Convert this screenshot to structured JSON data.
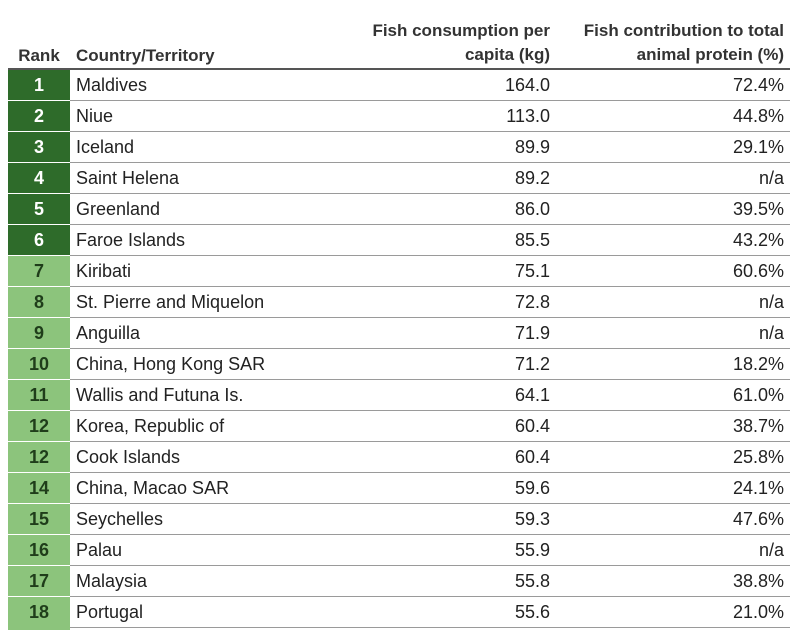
{
  "table": {
    "headers": {
      "rank": "Rank",
      "country": "Country/Territory",
      "fish_line1": "Fish consumption per",
      "fish_line2": "capita (kg)",
      "prot_line1": "Fish contribution to total",
      "prot_line2": "animal protein (%)"
    },
    "colors": {
      "top_rank": "#2e6b2a",
      "other_rank": "#8cc47c"
    },
    "rows": [
      {
        "rank": "1",
        "country": "Maldives",
        "fish": "164.0",
        "protein": "72.4%",
        "tier": "dark"
      },
      {
        "rank": "2",
        "country": "Niue",
        "fish": "113.0",
        "protein": "44.8%",
        "tier": "dark"
      },
      {
        "rank": "3",
        "country": "Iceland",
        "fish": "89.9",
        "protein": "29.1%",
        "tier": "dark"
      },
      {
        "rank": "4",
        "country": "Saint Helena",
        "fish": "89.2",
        "protein": "n/a",
        "tier": "dark"
      },
      {
        "rank": "5",
        "country": "Greenland",
        "fish": "86.0",
        "protein": "39.5%",
        "tier": "dark"
      },
      {
        "rank": "6",
        "country": "Faroe Islands",
        "fish": "85.5",
        "protein": "43.2%",
        "tier": "dark"
      },
      {
        "rank": "7",
        "country": "Kiribati",
        "fish": "75.1",
        "protein": "60.6%",
        "tier": "light"
      },
      {
        "rank": "8",
        "country": "St. Pierre and Miquelon",
        "fish": "72.8",
        "protein": "n/a",
        "tier": "light"
      },
      {
        "rank": "9",
        "country": "Anguilla",
        "fish": "71.9",
        "protein": "n/a",
        "tier": "light"
      },
      {
        "rank": "10",
        "country": "China, Hong Kong SAR",
        "fish": "71.2",
        "protein": "18.2%",
        "tier": "light"
      },
      {
        "rank": "11",
        "country": "Wallis and Futuna Is.",
        "fish": "64.1",
        "protein": "61.0%",
        "tier": "light"
      },
      {
        "rank": "12",
        "country": "Korea, Republic of",
        "fish": "60.4",
        "protein": "38.7%",
        "tier": "light"
      },
      {
        "rank": "12",
        "country": "Cook Islands",
        "fish": "60.4",
        "protein": "25.8%",
        "tier": "light"
      },
      {
        "rank": "14",
        "country": "China, Macao SAR",
        "fish": "59.6",
        "protein": "24.1%",
        "tier": "light"
      },
      {
        "rank": "15",
        "country": "Seychelles",
        "fish": "59.3",
        "protein": "47.6%",
        "tier": "light"
      },
      {
        "rank": "16",
        "country": "Palau",
        "fish": "55.9",
        "protein": "n/a",
        "tier": "light"
      },
      {
        "rank": "17",
        "country": "Malaysia",
        "fish": "55.8",
        "protein": "38.8%",
        "tier": "light"
      },
      {
        "rank": "18",
        "country": "Portugal",
        "fish": "55.6",
        "protein": "21.0%",
        "tier": "light"
      }
    ]
  }
}
